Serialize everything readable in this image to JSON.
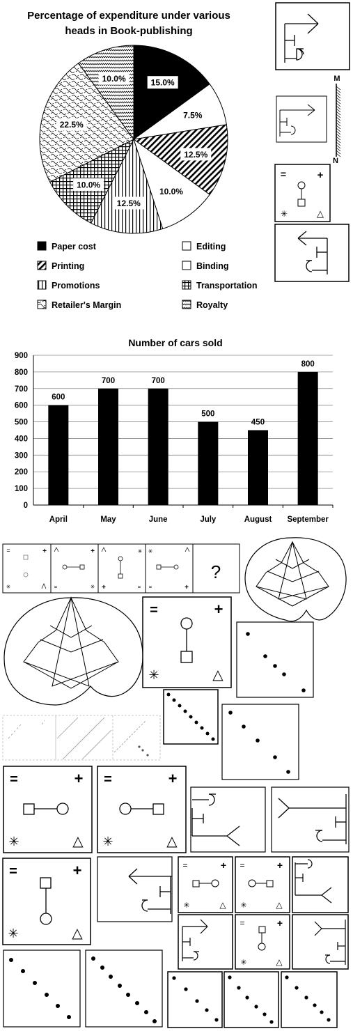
{
  "pie_chart": {
    "title_line1": "Percentage of expenditure under various",
    "title_line2": "heads in Book-publishing"
  },
  "bar_chart": {
    "title": "Number of cars sold"
  },
  "puzzle": {
    "question_mark": "?",
    "equals_symbol": "=",
    "plus_symbol": "+",
    "asterisk_symbol": "✳",
    "triangle_symbol": "△",
    "mirror_label_top": "M",
    "mirror_label_bottom": "N"
  },
  "chart_data": [
    {
      "type": "pie",
      "title": "Percentage of expenditure under various heads in Book-publishing",
      "categories": [
        "Paper cost",
        "Editing",
        "Printing",
        "Binding",
        "Promotions",
        "Transportation",
        "Retailer's Margin",
        "Royalty"
      ],
      "values": [
        15.0,
        7.5,
        12.5,
        10.0,
        12.5,
        10.0,
        22.5,
        10.0
      ],
      "labels": [
        "15.0%",
        "7.5%",
        "12.5%",
        "10.0%",
        "12.5%",
        "10.0%",
        "22.5%",
        "10.0%"
      ],
      "legend_placement": "bottom"
    },
    {
      "type": "bar",
      "title": "Number of cars sold",
      "categories": [
        "April",
        "May",
        "June",
        "July",
        "August",
        "September"
      ],
      "values": [
        600,
        700,
        700,
        500,
        450,
        800
      ],
      "yticks": [
        0,
        100,
        200,
        300,
        400,
        500,
        600,
        700,
        800,
        900
      ],
      "ylim": [
        0,
        900
      ],
      "grid": true,
      "bar_color": "#000000"
    }
  ]
}
